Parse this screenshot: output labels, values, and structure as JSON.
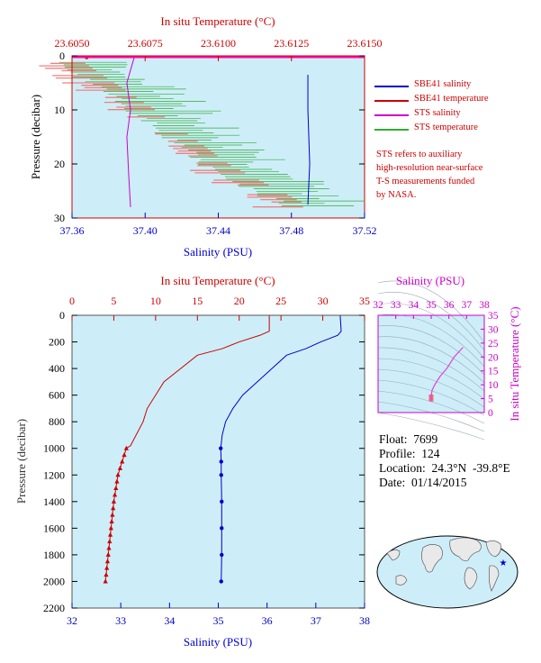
{
  "chart_data": [
    {
      "type": "line",
      "panel": "near-surface profile",
      "top_axis": {
        "label": "In situ Temperature (°C)",
        "ticks": [
          "23.6050",
          "23.6075",
          "23.6100",
          "23.6125",
          "23.6150"
        ],
        "range": [
          23.605,
          23.615
        ]
      },
      "bottom_axis": {
        "label": "Salinity (PSU)",
        "ticks": [
          "37.36",
          "37.40",
          "37.44",
          "37.48",
          "37.52"
        ],
        "range": [
          37.36,
          37.52
        ]
      },
      "y_axis": {
        "label": "Pressure (decibar)",
        "ticks": [
          "0",
          "10",
          "20",
          "30"
        ],
        "range": [
          0,
          30
        ]
      },
      "series": [
        {
          "name": "SBE41 salinity",
          "color": "#0000cc",
          "axis": "salinity",
          "x": [
            37.489,
            37.489,
            37.49,
            37.489
          ],
          "y": [
            3.5,
            10,
            20,
            27.5
          ]
        },
        {
          "name": "SBE41 temperature",
          "color": "#cc0000",
          "axis": "temperature",
          "x": [
            23.6055
          ],
          "y": [
            0.3
          ]
        },
        {
          "name": "STS salinity",
          "color": "#cc00cc",
          "axis": "salinity",
          "x": [
            37.394,
            37.39,
            37.392,
            37.39,
            37.391,
            37.392
          ],
          "y": [
            0.3,
            5,
            10,
            15,
            22,
            28
          ]
        },
        {
          "name": "STS temperature",
          "color": "#33aa33",
          "axis": "temperature",
          "x": [
            23.605,
            23.6075,
            23.61,
            23.6125
          ],
          "y": [
            1,
            10,
            20,
            27
          ]
        }
      ],
      "legend": [
        {
          "label": "SBE41 salinity",
          "color": "#0000cc"
        },
        {
          "label": "SBE41 temperature",
          "color": "#cc0000"
        },
        {
          "label": "STS salinity",
          "color": "#cc00cc"
        },
        {
          "label": "STS temperature",
          "color": "#33aa33"
        }
      ],
      "note": [
        "STS refers to auxiliary",
        "high-resolution near-surface",
        "T-S measurements funded",
        "by NASA."
      ]
    },
    {
      "type": "line",
      "panel": "full-depth profile",
      "top_axis": {
        "label": "In situ Temperature (°C)",
        "ticks": [
          "0",
          "5",
          "10",
          "15",
          "20",
          "25",
          "30",
          "35"
        ],
        "range": [
          0,
          35
        ]
      },
      "bottom_axis": {
        "label": "Salinity (PSU)",
        "ticks": [
          "32",
          "33",
          "34",
          "35",
          "36",
          "37",
          "38"
        ],
        "range": [
          32,
          38
        ]
      },
      "y_axis": {
        "label": "Pressure (decibar)",
        "ticks": [
          "0",
          "200",
          "400",
          "600",
          "800",
          "1000",
          "1200",
          "1400",
          "1600",
          "1800",
          "2000",
          "2200"
        ],
        "range": [
          0,
          2200
        ]
      },
      "series": [
        {
          "name": "Salinity",
          "color": "#0000cc",
          "axis": "salinity",
          "x": [
            37.5,
            37.52,
            37.45,
            37.1,
            36.8,
            36.4,
            36.1,
            35.8,
            35.5,
            35.3,
            35.15,
            35.08,
            35.05,
            35.06,
            35.06,
            35.07,
            35.07,
            35.07,
            35.06
          ],
          "y": [
            0,
            120,
            150,
            200,
            250,
            300,
            400,
            500,
            600,
            700,
            800,
            900,
            1000,
            1100,
            1200,
            1400,
            1600,
            1800,
            2000
          ]
        },
        {
          "name": "Temperature",
          "color": "#cc0000",
          "axis": "temperature",
          "x": [
            23.6,
            23.6,
            22.5,
            20,
            18,
            15,
            13,
            11,
            10,
            9,
            8.5,
            7,
            6.5,
            6,
            5.5,
            5,
            4.5,
            4
          ],
          "y": [
            0,
            120,
            150,
            200,
            250,
            300,
            400,
            500,
            600,
            700,
            800,
            980,
            1000,
            1100,
            1200,
            1400,
            1700,
            2000
          ]
        }
      ]
    },
    {
      "type": "line",
      "panel": "T-S diagram",
      "top_axis": {
        "label": "Salinity (PSU)",
        "ticks": [
          "32",
          "33",
          "34",
          "35",
          "36",
          "37",
          "38"
        ],
        "range": [
          32,
          38
        ]
      },
      "right_axis": {
        "label": "In situ Temperature (°C)",
        "ticks": [
          "0",
          "5",
          "10",
          "15",
          "20",
          "25",
          "30",
          "35"
        ],
        "range": [
          0,
          35
        ]
      },
      "series": [
        {
          "name": "T-S",
          "color": "#dd44dd",
          "x": [
            35.0,
            35.0,
            35.05,
            35.2,
            35.5,
            35.9,
            36.3,
            36.8
          ],
          "y": [
            4,
            6,
            8,
            10,
            13,
            16,
            20,
            23.5
          ]
        }
      ]
    }
  ],
  "float_info": {
    "float": "Float:  7699",
    "profile": "Profile:  124",
    "location": "Location:  24.3°N  -39.8°E",
    "date": "Date:  01/14/2015"
  },
  "colors": {
    "plot_bg": "#cdeef8",
    "salinity": "#0000cc",
    "temperature": "#cc0000",
    "sts_salinity": "#cc00cc",
    "sts_temperature": "#33aa33",
    "axis_magenta": "#cc00cc"
  },
  "map": {
    "marker_icon": "star-icon"
  }
}
